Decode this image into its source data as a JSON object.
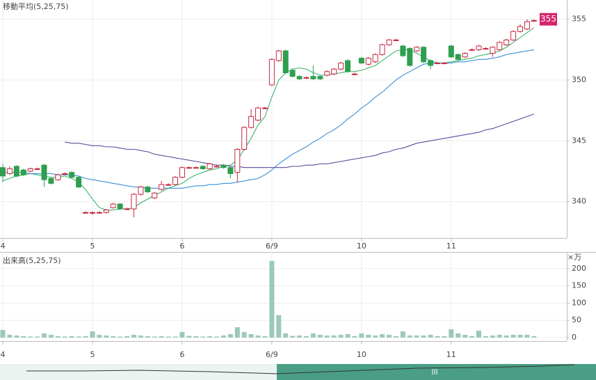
{
  "chart_data": [
    {
      "type": "candlestick",
      "title": "移動平均(5,25,75)",
      "categories": [
        "4",
        null,
        null,
        null,
        null,
        null,
        null,
        null,
        null,
        null,
        null,
        null,
        null,
        "5",
        null,
        null,
        null,
        null,
        null,
        null,
        null,
        null,
        null,
        null,
        null,
        null,
        "6",
        null,
        null,
        null,
        null,
        null,
        null,
        null,
        null,
        null,
        null,
        null,
        null,
        "6/9",
        null,
        null,
        null,
        null,
        null,
        null,
        null,
        null,
        null,
        null,
        null,
        null,
        "10",
        null,
        null,
        null,
        null,
        null,
        null,
        null,
        null,
        null,
        null,
        null,
        null,
        "11",
        null,
        null,
        null,
        null,
        null,
        null,
        null,
        null,
        null,
        null,
        null,
        null
      ],
      "open": [
        342.8,
        342.3,
        342.9,
        342.6,
        342.5,
        342.7,
        343.0,
        341.9,
        341.8,
        342.3,
        342.4,
        342.0,
        339.1,
        339.1,
        339.1,
        339.1,
        339.5,
        339.8,
        339.4,
        339.4,
        340.6,
        341.2,
        340.3,
        341.0,
        341.4,
        341.4,
        342.0,
        342.8,
        342.8,
        342.9,
        342.7,
        342.9,
        343.0,
        342.8,
        342.4,
        344.3,
        346.1,
        346.7,
        347.7,
        349.6,
        351.6,
        352.4,
        350.8,
        350.3,
        350.2,
        350.3,
        350.3,
        350.4,
        350.5,
        350.9,
        351.6,
        350.5,
        351.8,
        351.3,
        351.5,
        352.1,
        352.9,
        353.3,
        352.8,
        352.6,
        352.4,
        352.7,
        351.6,
        351.4,
        351.4,
        352.8,
        352.1,
        351.9,
        352.5,
        352.5,
        352.6,
        352.2,
        352.5,
        352.9,
        353.3,
        354.0,
        354.2,
        354.9
      ],
      "high": [
        343.1,
        342.9,
        343.0,
        342.7,
        342.8,
        342.8,
        343.1,
        342.0,
        342.3,
        342.4,
        342.5,
        342.1,
        339.2,
        339.2,
        339.2,
        339.4,
        339.9,
        339.9,
        339.5,
        340.7,
        341.3,
        341.3,
        340.8,
        341.7,
        341.5,
        342.1,
        342.9,
        342.9,
        342.9,
        343.0,
        343.2,
        343.0,
        343.1,
        342.9,
        344.4,
        346.2,
        347.6,
        347.8,
        347.8,
        351.8,
        352.5,
        352.5,
        350.9,
        350.4,
        350.3,
        351.2,
        350.4,
        350.8,
        351.0,
        351.5,
        351.7,
        350.6,
        351.9,
        351.9,
        352.2,
        353.0,
        353.4,
        353.4,
        352.9,
        352.7,
        352.8,
        352.8,
        351.7,
        351.5,
        351.5,
        352.9,
        352.2,
        352.3,
        352.6,
        352.9,
        352.7,
        352.8,
        353.2,
        353.4,
        354.1,
        354.6,
        355.0,
        355.0
      ],
      "low": [
        341.6,
        342.2,
        342.0,
        342.1,
        342.4,
        342.6,
        341.2,
        341.4,
        341.7,
        342.2,
        341.9,
        341.1,
        339.0,
        338.9,
        339.0,
        339.0,
        339.4,
        339.3,
        339.3,
        338.7,
        340.5,
        340.7,
        340.2,
        340.9,
        341.3,
        341.3,
        341.9,
        342.7,
        342.7,
        342.6,
        342.6,
        342.8,
        342.7,
        341.9,
        341.6,
        344.2,
        346.0,
        346.6,
        347.6,
        349.5,
        351.5,
        350.5,
        350.2,
        350.0,
        350.1,
        350.0,
        350.0,
        350.3,
        350.4,
        350.8,
        350.6,
        350.4,
        351.3,
        351.2,
        351.4,
        352.0,
        352.8,
        353.2,
        351.9,
        351.1,
        352.3,
        351.4,
        350.9,
        351.3,
        351.3,
        351.8,
        351.6,
        351.8,
        352.4,
        352.4,
        352.5,
        351.9,
        352.4,
        352.8,
        353.2,
        353.9,
        354.1,
        354.8
      ],
      "close": [
        342.1,
        342.7,
        342.1,
        342.2,
        342.7,
        342.7,
        341.8,
        341.5,
        342.2,
        342.3,
        342.0,
        341.2,
        339.1,
        339.1,
        339.1,
        339.3,
        339.8,
        339.4,
        339.4,
        340.6,
        341.2,
        340.8,
        340.7,
        341.4,
        341.4,
        342.0,
        342.8,
        342.8,
        342.8,
        342.7,
        343.1,
        342.9,
        342.8,
        342.3,
        344.3,
        346.1,
        347.0,
        347.7,
        347.7,
        351.7,
        352.4,
        350.6,
        350.3,
        350.1,
        350.2,
        350.1,
        350.1,
        350.7,
        350.9,
        351.4,
        350.7,
        350.5,
        351.4,
        351.8,
        352.1,
        352.9,
        353.3,
        353.3,
        352.0,
        351.2,
        352.7,
        351.5,
        351.2,
        351.4,
        351.4,
        351.9,
        351.7,
        352.2,
        352.5,
        352.8,
        352.6,
        352.7,
        353.1,
        353.3,
        354.0,
        354.4,
        354.8,
        354.9
      ],
      "up_color": "#c8273e",
      "down_color": "#2e9e4f",
      "series": [
        {
          "name": "5",
          "color": "#3cb371",
          "values": [
            341.7,
            341.9,
            342.1,
            342.2,
            342.3,
            342.2,
            342.1,
            342.0,
            342.0,
            342.1,
            341.9,
            341.6,
            341.0,
            340.2,
            339.5,
            339.3,
            339.3,
            339.4,
            339.4,
            339.5,
            339.9,
            340.2,
            340.5,
            340.8,
            341.1,
            341.3,
            341.5,
            341.9,
            342.2,
            342.4,
            342.6,
            342.7,
            342.9,
            343.0,
            343.4,
            344.3,
            345.2,
            346.3,
            347.0,
            348.6,
            350.0,
            350.6,
            350.9,
            351.0,
            350.9,
            350.6,
            350.4,
            350.4,
            350.5,
            350.6,
            350.7,
            350.7,
            350.8,
            351.0,
            351.2,
            351.6,
            352.0,
            352.4,
            352.5,
            352.5,
            352.2,
            351.9,
            351.6,
            351.4,
            351.4,
            351.5,
            351.6,
            351.7,
            351.8,
            352.0,
            352.1,
            352.2,
            352.4,
            352.7,
            353.1,
            353.5,
            353.9,
            354.3
          ]
        },
        {
          "name": "25",
          "color": "#3a8fd8",
          "values": [
            342.4,
            342.4,
            342.4,
            342.4,
            342.3,
            342.3,
            342.3,
            342.3,
            342.2,
            342.2,
            342.2,
            342.1,
            341.9,
            341.8,
            341.7,
            341.6,
            341.5,
            341.4,
            341.3,
            341.2,
            341.2,
            341.1,
            341.1,
            341.1,
            341.1,
            341.1,
            341.1,
            341.2,
            341.3,
            341.3,
            341.4,
            341.4,
            341.5,
            341.5,
            341.6,
            341.7,
            341.8,
            341.9,
            342.2,
            342.6,
            343.1,
            343.5,
            343.9,
            344.2,
            344.5,
            344.9,
            345.2,
            345.6,
            345.9,
            346.3,
            346.8,
            347.2,
            347.7,
            348.1,
            348.6,
            349.0,
            349.5,
            350.0,
            350.4,
            350.7,
            351.0,
            351.3,
            351.4,
            351.4,
            351.4,
            351.4,
            351.5,
            351.5,
            351.6,
            351.7,
            351.7,
            351.8,
            351.9,
            352.1,
            352.2,
            352.3,
            352.4,
            352.5
          ]
        },
        {
          "name": "75",
          "color": "#5b4a9b",
          "values": [
            null,
            null,
            null,
            null,
            null,
            null,
            null,
            null,
            null,
            344.9,
            344.8,
            344.8,
            344.7,
            344.6,
            344.6,
            344.5,
            344.5,
            344.4,
            344.3,
            344.3,
            344.2,
            344.1,
            343.9,
            343.8,
            343.7,
            343.6,
            343.5,
            343.4,
            343.3,
            343.2,
            343.1,
            343.0,
            343.0,
            342.9,
            342.9,
            342.8,
            342.8,
            342.8,
            342.8,
            342.8,
            342.8,
            342.8,
            342.9,
            342.9,
            343.0,
            343.0,
            343.1,
            343.1,
            343.2,
            343.3,
            343.4,
            343.5,
            343.6,
            343.7,
            343.8,
            344.0,
            344.1,
            344.3,
            344.4,
            344.6,
            344.8,
            344.9,
            345.0,
            345.1,
            345.2,
            345.3,
            345.4,
            345.5,
            345.6,
            345.7,
            345.9,
            346.0,
            346.2,
            346.4,
            346.6,
            346.8,
            347.0,
            347.2
          ]
        }
      ],
      "ylim": [
        337,
        356.3
      ],
      "yticks": [
        340,
        345,
        350,
        355
      ],
      "grid": true,
      "price_badge": 355,
      "badge_color": "#d6246e"
    },
    {
      "type": "bar",
      "title": "出来高(5,25,75)",
      "y_unit_label": "×万",
      "categories": [
        "4",
        null,
        null,
        null,
        null,
        null,
        null,
        null,
        null,
        null,
        null,
        null,
        null,
        "5",
        null,
        null,
        null,
        null,
        null,
        null,
        null,
        null,
        null,
        null,
        null,
        null,
        "6",
        null,
        null,
        null,
        null,
        null,
        null,
        null,
        null,
        null,
        null,
        null,
        null,
        "6/9",
        null,
        null,
        null,
        null,
        null,
        null,
        null,
        null,
        null,
        null,
        null,
        null,
        "10",
        null,
        null,
        null,
        null,
        null,
        null,
        null,
        null,
        null,
        null,
        null,
        null,
        "11",
        null,
        null,
        null,
        null,
        null,
        null,
        null,
        null,
        null,
        null,
        null,
        null
      ],
      "values": [
        22,
        8,
        6,
        4,
        3,
        3,
        12,
        8,
        4,
        3,
        4,
        3,
        4,
        18,
        8,
        6,
        4,
        3,
        4,
        8,
        6,
        4,
        3,
        4,
        3,
        3,
        16,
        5,
        4,
        3,
        4,
        3,
        6,
        10,
        30,
        16,
        10,
        6,
        4,
        222,
        65,
        12,
        5,
        6,
        4,
        12,
        8,
        6,
        6,
        8,
        10,
        4,
        12,
        8,
        6,
        10,
        8,
        4,
        18,
        6,
        6,
        6,
        8,
        4,
        4,
        24,
        12,
        8,
        4,
        20,
        4,
        6,
        8,
        6,
        8,
        8,
        8,
        4
      ],
      "color": "#9bc9b8",
      "ylim": [
        -10,
        240
      ],
      "yticks": [
        0,
        50,
        100,
        150,
        200
      ],
      "grid": true
    }
  ]
}
